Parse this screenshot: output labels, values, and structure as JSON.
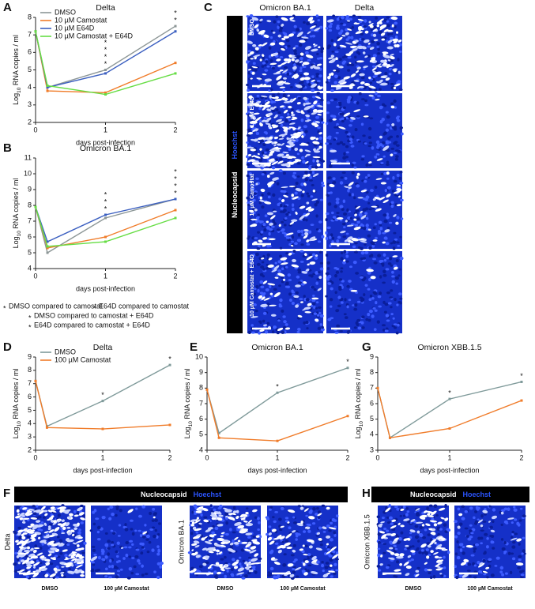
{
  "chart_data": [
    {
      "type": "line",
      "title": "Delta",
      "x": [
        0,
        0.17,
        1,
        2
      ],
      "xlim": [
        0,
        2
      ],
      "xticks": [
        0,
        1,
        2
      ],
      "ylim": [
        2,
        8
      ],
      "yticks": [
        2,
        3,
        4,
        5,
        6,
        7,
        8
      ],
      "x_label": "days post-infection",
      "y_label": [
        "Log",
        "10",
        " RNA copies / ml"
      ],
      "legend": "upper left",
      "series": [
        {
          "name": "DMSO",
          "color": "#8c9696",
          "values": [
            7.2,
            4.0,
            5.0,
            7.5
          ]
        },
        {
          "name": "10 µM Camostat",
          "color": "#f07c2a",
          "values": [
            7.2,
            3.8,
            3.7,
            5.4
          ]
        },
        {
          "name": "10 µM E64D",
          "color": "#3b5fc0",
          "values": [
            7.2,
            4.0,
            4.8,
            7.2
          ]
        },
        {
          "name": "10 µM Camostat + E64D",
          "color": "#66dd44",
          "values": [
            7.2,
            4.1,
            3.6,
            4.8
          ]
        }
      ],
      "markers": [
        {
          "x": 1,
          "label": "*",
          "colors": [
            "#2e7d32",
            "#a31c1c",
            "#66dd44",
            "#f07c2a"
          ]
        },
        {
          "x": 2,
          "label": "*",
          "colors": [
            "#2e7d32",
            "#66dd44"
          ]
        }
      ]
    },
    {
      "type": "line",
      "title": "Omicron BA.1",
      "x": [
        0,
        0.17,
        1,
        2
      ],
      "xlim": [
        0,
        2
      ],
      "xticks": [
        0,
        1,
        2
      ],
      "ylim": [
        4,
        11
      ],
      "yticks": [
        4,
        5,
        6,
        7,
        8,
        9,
        10,
        11
      ],
      "x_label": "days post-infection",
      "y_label": [
        "Log",
        "10",
        " RNA copies / ml"
      ],
      "series": [
        {
          "color": "#8c9696",
          "values": [
            7.9,
            5.0,
            7.2,
            8.4
          ]
        },
        {
          "color": "#f07c2a",
          "values": [
            7.9,
            5.3,
            6.0,
            7.7
          ]
        },
        {
          "color": "#3b5fc0",
          "values": [
            7.9,
            5.7,
            7.4,
            8.4
          ]
        },
        {
          "color": "#66dd44",
          "values": [
            7.9,
            5.4,
            5.7,
            7.2
          ]
        }
      ],
      "markers": [
        {
          "x": 1,
          "label": "*",
          "colors": [
            "#2e7d32",
            "#66dd44",
            "#f07c2a"
          ]
        },
        {
          "x": 2,
          "label": "*",
          "colors": [
            "#2e7d32",
            "#a31c1c",
            "#66dd44",
            "#f07c2a"
          ]
        }
      ]
    },
    {
      "type": "line",
      "title": "Delta",
      "x": [
        0,
        0.17,
        1,
        2
      ],
      "xlim": [
        0,
        2
      ],
      "xticks": [
        0,
        1,
        2
      ],
      "ylim": [
        2,
        9
      ],
      "yticks": [
        2,
        3,
        4,
        5,
        6,
        7,
        8,
        9
      ],
      "x_label": "days post-infection",
      "y_label": [
        "Log",
        "10",
        " RNA copies / ml"
      ],
      "legend": "upper left",
      "series": [
        {
          "name": "DMSO",
          "color": "#7f9a9a",
          "values": [
            7.2,
            3.8,
            5.7,
            8.4
          ]
        },
        {
          "name": "100 µM Camostat",
          "color": "#f07c2a",
          "values": [
            7.2,
            3.7,
            3.6,
            3.9
          ]
        }
      ],
      "markers": [
        {
          "x": 1,
          "label": "*",
          "colors": [
            "#111111"
          ]
        },
        {
          "x": 2,
          "label": "*",
          "colors": [
            "#111111"
          ]
        }
      ]
    },
    {
      "type": "line",
      "title": "Omicron BA.1",
      "x": [
        0,
        0.17,
        1,
        2
      ],
      "xlim": [
        0,
        2
      ],
      "xticks": [
        0,
        1,
        2
      ],
      "ylim": [
        4,
        10
      ],
      "yticks": [
        4,
        5,
        6,
        7,
        8,
        9,
        10
      ],
      "x_label": "days post-infection",
      "y_label": [
        "Log",
        "10",
        " RNA copies / ml"
      ],
      "series": [
        {
          "color": "#7f9a9a",
          "values": [
            7.9,
            5.1,
            7.7,
            9.3
          ]
        },
        {
          "color": "#f07c2a",
          "values": [
            7.9,
            4.8,
            4.6,
            6.2
          ]
        }
      ],
      "markers": [
        {
          "x": 1,
          "label": "*",
          "colors": [
            "#111111"
          ]
        },
        {
          "x": 2,
          "label": "*",
          "colors": [
            "#111111"
          ]
        }
      ]
    },
    {
      "type": "line",
      "title": "Omicron XBB.1.5",
      "x": [
        0,
        0.17,
        1,
        2
      ],
      "xlim": [
        0,
        2
      ],
      "xticks": [
        0,
        1,
        2
      ],
      "ylim": [
        3,
        9
      ],
      "yticks": [
        3,
        4,
        5,
        6,
        7,
        8,
        9
      ],
      "x_label": "days post-infection",
      "y_label": [
        "Log",
        "10",
        " RNA copies / ml"
      ],
      "series": [
        {
          "color": "#7f9a9a",
          "values": [
            7.0,
            3.8,
            6.3,
            7.4
          ]
        },
        {
          "color": "#f07c2a",
          "values": [
            7.0,
            3.8,
            4.4,
            6.2
          ]
        }
      ],
      "markers": [
        {
          "x": 1,
          "label": "*",
          "colors": [
            "#111111"
          ]
        },
        {
          "x": 2,
          "label": "*",
          "colors": [
            "#111111"
          ]
        }
      ]
    }
  ],
  "panel_letters": [
    "A",
    "B",
    "C",
    "D",
    "E",
    "F",
    "G",
    "H"
  ],
  "significance_legend": [
    {
      "label": "*",
      "text": "DMSO compared to camostat",
      "color": "#f07c2a"
    },
    {
      "label": "*",
      "text": "E64D compared to camostat",
      "color": "#a31c1c"
    },
    {
      "label": "*",
      "text": "DMSO compared to camostat + E64D",
      "color": "#66dd44"
    },
    {
      "label": "*",
      "text": "E64D compared to camostat + E64D",
      "color": "#2e7d32"
    }
  ],
  "panel_c": {
    "columns": [
      "Omicron BA.1",
      "Delta"
    ],
    "rows": [
      "DMSO",
      "10 µM E64D",
      "10 µM Camostat",
      "10 µM Camostat + E64D"
    ],
    "stain": "Nucleocapsid",
    "counterstain": "Hoechst"
  },
  "panel_f": {
    "stain": "Nucleocapsid",
    "counterstain": "Hoechst",
    "rows": [
      "Delta",
      "Omicron BA.1"
    ],
    "captions": [
      "DMSO",
      "100 µM Camostat"
    ]
  },
  "panel_h": {
    "stain": "Nucleocapsid",
    "counterstain": "Hoechst",
    "rows": [
      "Omicron XBB.1.5"
    ],
    "captions": [
      "DMSO",
      "100 µM Camostat"
    ]
  }
}
